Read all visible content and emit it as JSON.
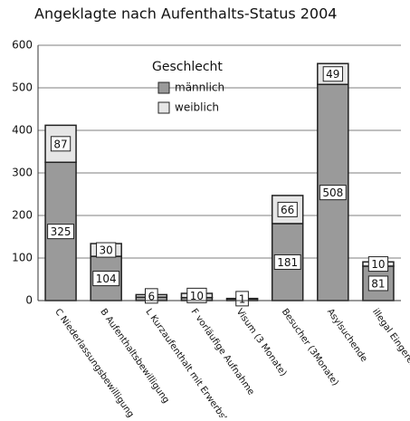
{
  "chart_data": {
    "type": "stacked_bar",
    "title": "Angeklagte nach Aufenthalts-Status 2004",
    "categories": [
      "C Niederlassungsbewilligung",
      "B Aufenthaltsbewilligung",
      "L Kurzaufenthalt mit Erwerbstät",
      "F vorläufige Aufnahme",
      "Visum (3 Monate)",
      "Besucher (3Monate)",
      "Asylsuchende",
      "illegal Eingereiste"
    ],
    "series": [
      {
        "name": "männlich",
        "color": "#9a9a9a",
        "values": [
          325,
          104,
          8,
          7,
          4,
          181,
          508,
          81
        ],
        "value_labels": [
          "325",
          "104",
          null,
          null,
          null,
          "181",
          "508",
          "81"
        ]
      },
      {
        "name": "weiblich",
        "color": "#e6e6e6",
        "values": [
          87,
          30,
          6,
          10,
          1,
          66,
          49,
          10
        ],
        "value_labels": [
          "87",
          "30",
          "6",
          "10",
          "1",
          "66",
          "49",
          "10"
        ]
      }
    ],
    "legend_title": "Geschlecht",
    "ylim": [
      0,
      600
    ],
    "yticks": [
      0,
      100,
      200,
      300,
      400,
      500,
      600
    ],
    "grid": true
  }
}
